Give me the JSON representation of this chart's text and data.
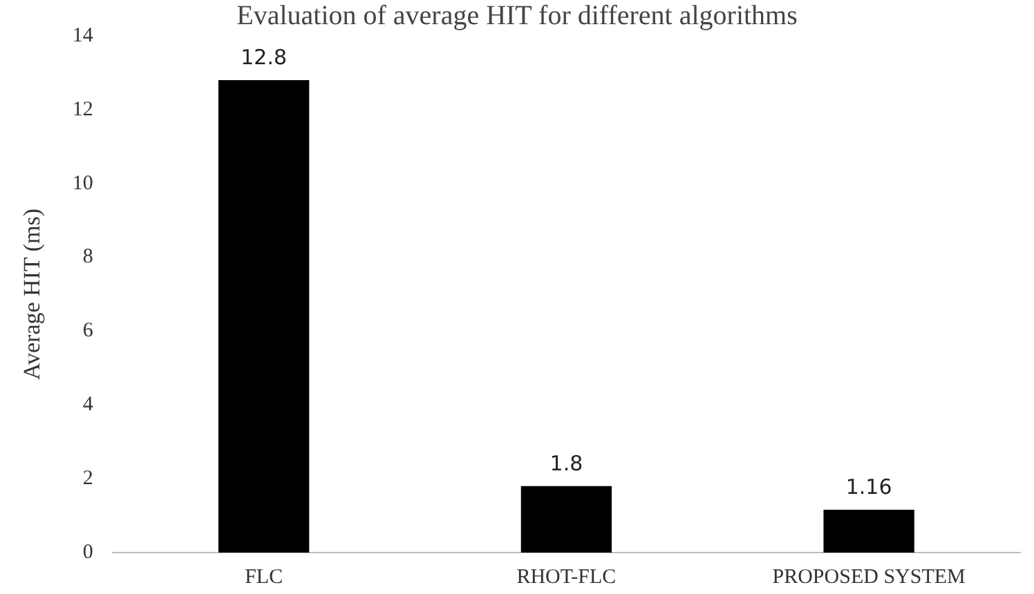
{
  "chart_data": {
    "type": "bar",
    "title": "Evaluation of average HIT for different algorithms",
    "ylabel": "Average HIT (ms)",
    "categories": [
      "FLC",
      "RHOT-FLC",
      "PROPOSED SYSTEM"
    ],
    "values": [
      12.8,
      1.8,
      1.16
    ],
    "colors": [
      "#000000",
      "#000000",
      "#000000"
    ],
    "ylim": [
      0,
      14
    ],
    "yticks": [
      0,
      2,
      4,
      6,
      8,
      10,
      12,
      14
    ],
    "grid": false,
    "data_labels": true,
    "legend": false
  }
}
